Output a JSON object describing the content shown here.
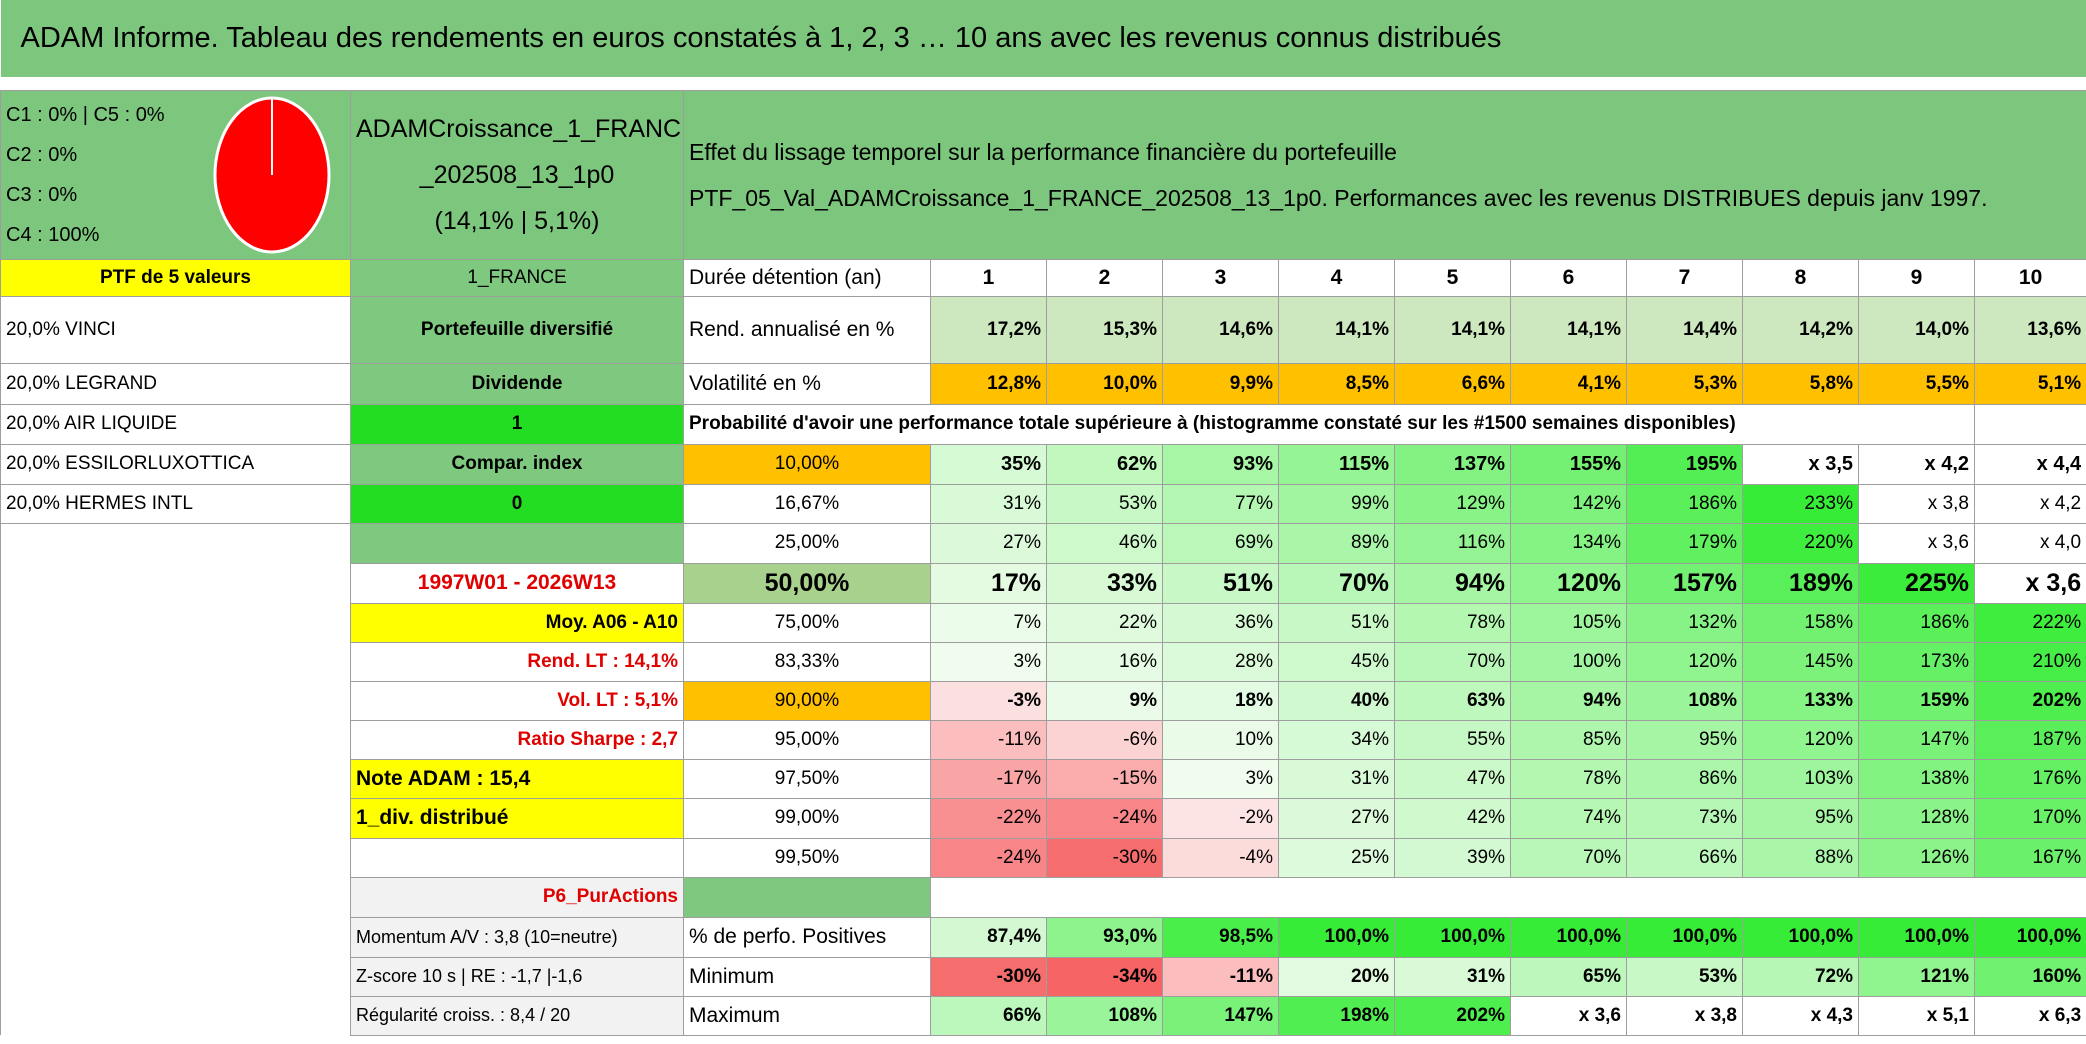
{
  "header": {
    "title": "ADAM Informe. Tableau des rendements en euros constatés à 1, 2, 3 … 10 ans avec les revenus connus distribués"
  },
  "summary": {
    "allocation": [
      "C1 : 0% | C5 : 0%",
      "C2 : 0%",
      "C3 : 0%",
      "C4 : 100%"
    ],
    "portfolio": [
      "ADAMCroissance_1_FRANCE",
      "_202508_13_1p0",
      "(14,1% | 5,1%)"
    ],
    "description": [
      "Effet du lissage temporel sur la performance financière du portefeuille",
      "PTF_05_Val_ADAMCroissance_1_FRANCE_202508_13_1p0. Performances avec les revenus DISTRIBUES depuis janv 1997."
    ]
  },
  "table": {
    "rows": [
      [
        "PTF de 5 valeurs",
        "1_FRANCE",
        "Durée détention (an)",
        "1",
        "2",
        "3",
        "4",
        "5",
        "6",
        "7",
        "8",
        "9",
        "10"
      ],
      [
        "20,0% VINCI",
        "Portefeuille diversifié",
        "Rend. annualisé en %",
        "17,2%",
        "15,3%",
        "14,6%",
        "14,1%",
        "14,1%",
        "14,1%",
        "14,4%",
        "14,2%",
        "14,0%",
        "13,6%"
      ],
      [
        "20,0% LEGRAND",
        "Dividende",
        "Volatilité en %",
        "12,8%",
        "10,0%",
        "9,9%",
        "8,5%",
        "6,6%",
        "4,1%",
        "5,3%",
        "5,8%",
        "5,5%",
        "5,1%"
      ],
      [
        "20,0% AIR LIQUIDE",
        "1",
        "Probabilité d'avoir une performance totale supérieure à (histogramme constaté sur les #1500 semaines disponibles)",
        null
      ],
      [
        "20,0% ESSILORLUXOTTICA",
        "Compar. index",
        "10,00%",
        "35%",
        "62%",
        "93%",
        "115%",
        "137%",
        "155%",
        "195%",
        "x 3,5",
        "x 4,2",
        "x 4,4"
      ],
      [
        "20,0% HERMES INTL",
        "0",
        "16,67%",
        "31%",
        "53%",
        "77%",
        "99%",
        "129%",
        "142%",
        "186%",
        "233%",
        "x 3,8",
        "x 4,2"
      ],
      [
        null,
        null,
        "25,00%",
        "27%",
        "46%",
        "69%",
        "89%",
        "116%",
        "134%",
        "179%",
        "220%",
        "x 3,6",
        "x 4,0"
      ],
      [
        null,
        "1997W01 - 2026W13",
        "50,00%",
        "17%",
        "33%",
        "51%",
        "70%",
        "94%",
        "120%",
        "157%",
        "189%",
        "225%",
        "x 3,6"
      ],
      [
        null,
        "Moy. A06 - A10",
        "75,00%",
        "7%",
        "22%",
        "36%",
        "51%",
        "78%",
        "105%",
        "132%",
        "158%",
        "186%",
        "222%"
      ],
      [
        null,
        "Rend. LT : 14,1%",
        "83,33%",
        "3%",
        "16%",
        "28%",
        "45%",
        "70%",
        "100%",
        "120%",
        "145%",
        "173%",
        "210%"
      ],
      [
        null,
        "Vol. LT : 5,1%",
        "90,00%",
        "-3%",
        "9%",
        "18%",
        "40%",
        "63%",
        "94%",
        "108%",
        "133%",
        "159%",
        "202%"
      ],
      [
        null,
        "Ratio Sharpe : 2,7",
        "95,00%",
        "-11%",
        "-6%",
        "10%",
        "34%",
        "55%",
        "85%",
        "95%",
        "120%",
        "147%",
        "187%"
      ],
      [
        null,
        "Note ADAM : 15,4",
        "97,50%",
        "-17%",
        "-15%",
        "3%",
        "31%",
        "47%",
        "78%",
        "86%",
        "103%",
        "138%",
        "176%"
      ],
      [
        null,
        "1_div. distribué",
        "99,00%",
        "-22%",
        "-24%",
        "-2%",
        "27%",
        "42%",
        "74%",
        "73%",
        "95%",
        "128%",
        "170%"
      ],
      [
        null,
        null,
        "99,50%",
        "-24%",
        "-30%",
        "-4%",
        "25%",
        "39%",
        "70%",
        "66%",
        "88%",
        "126%",
        "167%"
      ],
      [
        null,
        "P6_PurActions",
        null,
        null
      ],
      [
        null,
        "Momentum A/V : 3,8 (10=neutre)",
        "% de perfo. Positives",
        "87,4%",
        "93,0%",
        "98,5%",
        "100,0%",
        "100,0%",
        "100,0%",
        "100,0%",
        "100,0%",
        "100,0%",
        "100,0%"
      ],
      [
        null,
        "Z-score 10 s | RE : -1,7 |-1,6",
        "Minimum",
        "-30%",
        "-34%",
        "-11%",
        "20%",
        "31%",
        "65%",
        "53%",
        "72%",
        "121%",
        "160%"
      ],
      [
        null,
        "Régularité croiss. : 8,4 / 20",
        "Maximum",
        "66%",
        "108%",
        "147%",
        "198%",
        "202%",
        "x 3,6",
        "x 3,8",
        "x 4,3",
        "x 5,1",
        "x 6,3"
      ]
    ]
  }
}
